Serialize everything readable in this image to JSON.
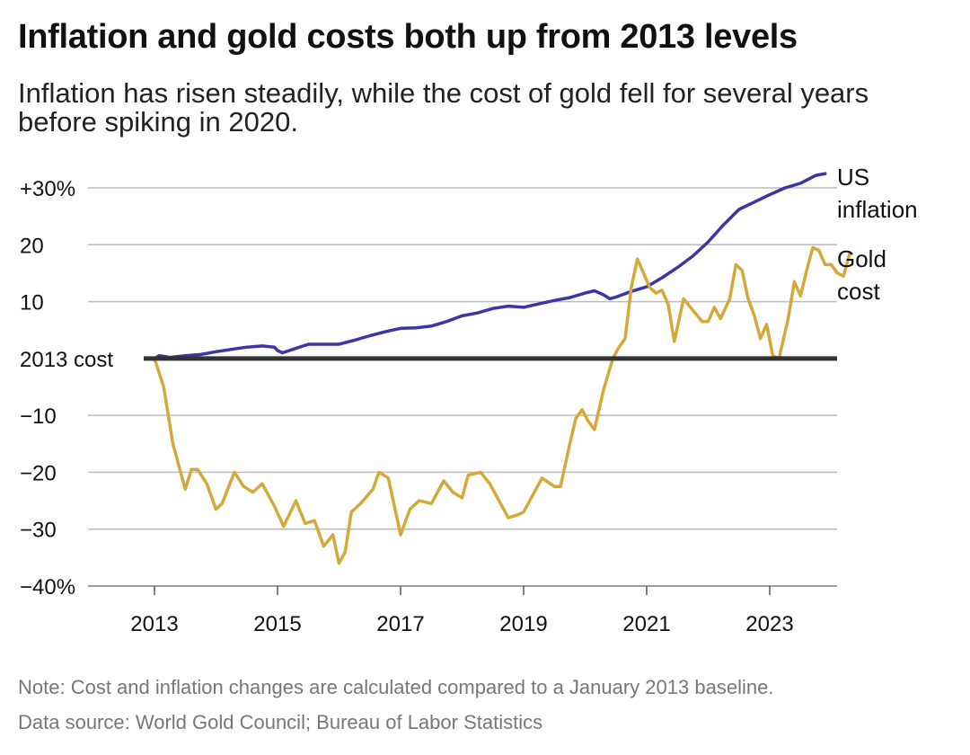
{
  "title": "Inflation and gold costs both up from 2013 levels",
  "subtitle": "Inflation has risen steadily, while the cost of gold fell for several years before spiking in 2020.",
  "note": "Note: Cost and inflation changes are calculated compared to a January 2013 baseline.",
  "source": "Data source: World Gold Council; Bureau of Labor Statistics",
  "colors": {
    "inflation": "#3b35a6",
    "gold": "#d4a93a",
    "baseline": "#333333",
    "grid": "#bbbbbb"
  },
  "chart_data": {
    "type": "line",
    "title": "Inflation and gold costs both up from 2013 levels",
    "xlabel": "",
    "ylabel": "",
    "xlim": [
      2013,
      2024.1
    ],
    "ylim": [
      -40,
      30
    ],
    "grid": true,
    "x_ticks": [
      2013,
      2015,
      2017,
      2019,
      2021,
      2023
    ],
    "x_tick_labels": [
      "2013",
      "2015",
      "2017",
      "2019",
      "2021",
      "2023"
    ],
    "y_ticks": [
      30,
      20,
      10,
      0,
      -10,
      -20,
      -30,
      -40
    ],
    "y_tick_labels": [
      "+30%",
      "20",
      "10",
      "2013 cost",
      "−10",
      "−20",
      "−30",
      "−40%"
    ],
    "baseline_label": "2013 cost",
    "series": [
      {
        "name": "US inflation",
        "label_lines": [
          "US",
          "inflation"
        ],
        "color": "#3b35a6",
        "points": [
          [
            2013.0,
            0.0
          ],
          [
            2013.08,
            0.5
          ],
          [
            2013.25,
            0.2
          ],
          [
            2013.5,
            0.5
          ],
          [
            2013.75,
            0.7
          ],
          [
            2014.0,
            1.2
          ],
          [
            2014.25,
            1.6
          ],
          [
            2014.5,
            2.0
          ],
          [
            2014.75,
            2.2
          ],
          [
            2014.95,
            2.0
          ],
          [
            2015.0,
            1.4
          ],
          [
            2015.08,
            1.0
          ],
          [
            2015.25,
            1.6
          ],
          [
            2015.5,
            2.5
          ],
          [
            2015.75,
            2.5
          ],
          [
            2016.0,
            2.5
          ],
          [
            2016.25,
            3.2
          ],
          [
            2016.5,
            4.0
          ],
          [
            2016.75,
            4.7
          ],
          [
            2017.0,
            5.3
          ],
          [
            2017.25,
            5.4
          ],
          [
            2017.5,
            5.7
          ],
          [
            2017.75,
            6.5
          ],
          [
            2018.0,
            7.5
          ],
          [
            2018.25,
            8.0
          ],
          [
            2018.5,
            8.8
          ],
          [
            2018.75,
            9.2
          ],
          [
            2019.0,
            9.0
          ],
          [
            2019.25,
            9.6
          ],
          [
            2019.5,
            10.2
          ],
          [
            2019.75,
            10.7
          ],
          [
            2020.0,
            11.5
          ],
          [
            2020.15,
            11.9
          ],
          [
            2020.3,
            11.2
          ],
          [
            2020.4,
            10.5
          ],
          [
            2020.5,
            10.8
          ],
          [
            2020.75,
            11.8
          ],
          [
            2021.0,
            12.6
          ],
          [
            2021.25,
            14.2
          ],
          [
            2021.5,
            16.0
          ],
          [
            2021.75,
            18.0
          ],
          [
            2022.0,
            20.5
          ],
          [
            2022.25,
            23.5
          ],
          [
            2022.5,
            26.2
          ],
          [
            2022.75,
            27.5
          ],
          [
            2023.0,
            28.8
          ],
          [
            2023.25,
            30.0
          ],
          [
            2023.5,
            30.8
          ],
          [
            2023.75,
            32.2
          ],
          [
            2023.9,
            32.5
          ]
        ]
      },
      {
        "name": "Gold cost",
        "label_lines": [
          "Gold",
          "cost"
        ],
        "color": "#d4a93a",
        "points": [
          [
            2013.0,
            0.0
          ],
          [
            2013.15,
            -5.0
          ],
          [
            2013.3,
            -15.0
          ],
          [
            2013.5,
            -23.0
          ],
          [
            2013.6,
            -19.5
          ],
          [
            2013.7,
            -19.5
          ],
          [
            2013.85,
            -22.0
          ],
          [
            2014.0,
            -26.5
          ],
          [
            2014.1,
            -25.5
          ],
          [
            2014.3,
            -20.0
          ],
          [
            2014.45,
            -22.5
          ],
          [
            2014.6,
            -23.5
          ],
          [
            2014.75,
            -22.0
          ],
          [
            2014.95,
            -26.0
          ],
          [
            2015.1,
            -29.5
          ],
          [
            2015.3,
            -25.0
          ],
          [
            2015.45,
            -29.0
          ],
          [
            2015.6,
            -28.5
          ],
          [
            2015.75,
            -33.0
          ],
          [
            2015.9,
            -31.0
          ],
          [
            2016.0,
            -36.0
          ],
          [
            2016.1,
            -34.0
          ],
          [
            2016.2,
            -27.0
          ],
          [
            2016.35,
            -25.5
          ],
          [
            2016.55,
            -23.0
          ],
          [
            2016.65,
            -20.0
          ],
          [
            2016.8,
            -21.0
          ],
          [
            2016.9,
            -26.0
          ],
          [
            2017.0,
            -31.0
          ],
          [
            2017.15,
            -26.5
          ],
          [
            2017.3,
            -25.0
          ],
          [
            2017.5,
            -25.5
          ],
          [
            2017.7,
            -21.5
          ],
          [
            2017.85,
            -23.5
          ],
          [
            2018.0,
            -24.5
          ],
          [
            2018.1,
            -20.5
          ],
          [
            2018.3,
            -20.0
          ],
          [
            2018.45,
            -22.0
          ],
          [
            2018.6,
            -25.0
          ],
          [
            2018.75,
            -28.0
          ],
          [
            2018.9,
            -27.5
          ],
          [
            2019.0,
            -27.0
          ],
          [
            2019.15,
            -24.0
          ],
          [
            2019.3,
            -21.0
          ],
          [
            2019.5,
            -22.5
          ],
          [
            2019.6,
            -22.5
          ],
          [
            2019.75,
            -15.0
          ],
          [
            2019.85,
            -10.5
          ],
          [
            2019.95,
            -9.0
          ],
          [
            2020.05,
            -11.0
          ],
          [
            2020.15,
            -12.5
          ],
          [
            2020.3,
            -5.5
          ],
          [
            2020.45,
            0.0
          ],
          [
            2020.55,
            2.0
          ],
          [
            2020.65,
            3.5
          ],
          [
            2020.75,
            12.5
          ],
          [
            2020.85,
            17.5
          ],
          [
            2020.95,
            15.0
          ],
          [
            2021.05,
            12.5
          ],
          [
            2021.15,
            11.5
          ],
          [
            2021.25,
            12.0
          ],
          [
            2021.35,
            9.5
          ],
          [
            2021.45,
            3.0
          ],
          [
            2021.6,
            10.5
          ],
          [
            2021.75,
            8.5
          ],
          [
            2021.9,
            6.5
          ],
          [
            2022.0,
            6.5
          ],
          [
            2022.1,
            9.0
          ],
          [
            2022.2,
            7.0
          ],
          [
            2022.35,
            10.5
          ],
          [
            2022.45,
            16.5
          ],
          [
            2022.55,
            15.5
          ],
          [
            2022.65,
            10.5
          ],
          [
            2022.75,
            7.5
          ],
          [
            2022.85,
            3.5
          ],
          [
            2022.95,
            6.0
          ],
          [
            2023.05,
            0.5
          ],
          [
            2023.15,
            0.0
          ],
          [
            2023.3,
            7.0
          ],
          [
            2023.4,
            13.5
          ],
          [
            2023.5,
            11.0
          ],
          [
            2023.6,
            15.5
          ],
          [
            2023.7,
            19.5
          ],
          [
            2023.8,
            19.0
          ],
          [
            2023.9,
            16.5
          ],
          [
            2024.0,
            16.5
          ],
          [
            2024.1,
            15.0
          ],
          [
            2024.2,
            14.5
          ],
          [
            2024.3,
            18.5
          ]
        ]
      }
    ]
  }
}
